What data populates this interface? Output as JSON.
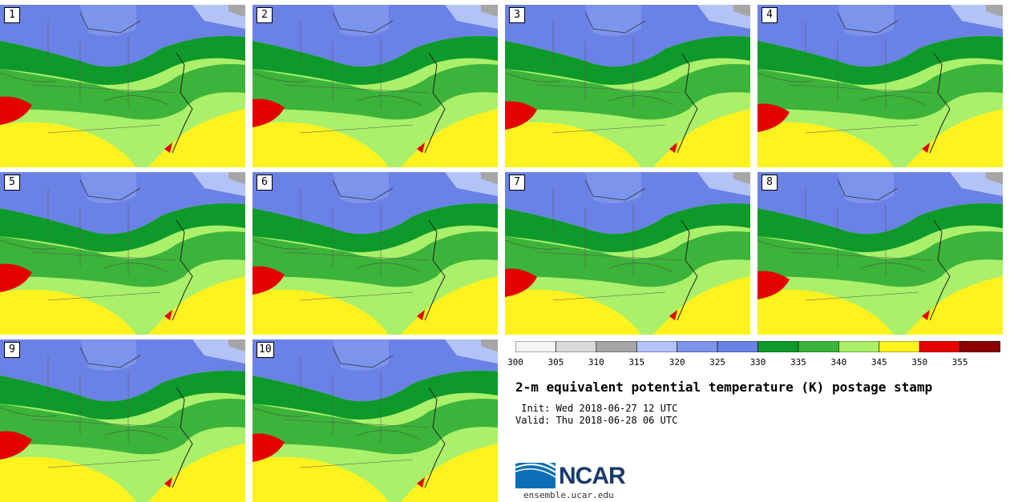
{
  "title": "2-m equivalent potential temperature (K) postage stamp",
  "init": " Init: Wed 2018-06-27 12 UTC",
  "valid": "Valid: Thu 2018-06-28 06 UTC",
  "logo": {
    "name": "NCAR",
    "url": "ensemble.ucar.edu"
  },
  "members": [
    "1",
    "2",
    "3",
    "4",
    "5",
    "6",
    "7",
    "8",
    "9",
    "10"
  ],
  "colorbar": {
    "ticks": [
      "300",
      "305",
      "310",
      "315",
      "320",
      "325",
      "330",
      "335",
      "340",
      "345",
      "350",
      "355"
    ],
    "colors": [
      "#f4f4f4",
      "#d9d9d9",
      "#a6a6a6",
      "#b4c3f5",
      "#7d94ec",
      "#6a82e6",
      "#0e9a2a",
      "#3cb33a",
      "#aaf06a",
      "#fff21e",
      "#e50000",
      "#8b0000"
    ]
  }
}
